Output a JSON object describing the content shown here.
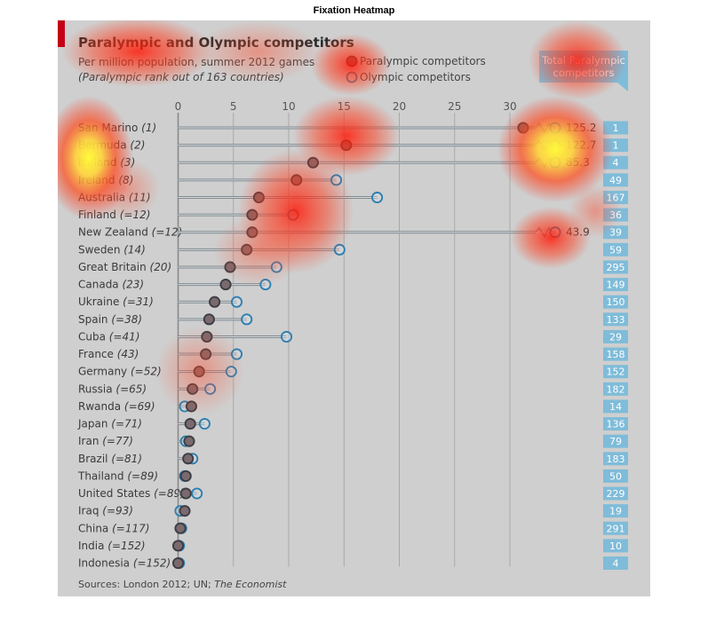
{
  "figure_title": "Fixation Heatmap",
  "chart_data": {
    "type": "scatter",
    "title": "Paralympic and Olympic competitors",
    "subtitle": "Per million population, summer 2012 games",
    "subtitle2": "(Paralympic rank out of 163 countries)",
    "legend": {
      "paralympic": "Paralympic competitors",
      "olympic": "Olympic competitors",
      "placement": "top"
    },
    "total_header": "Total Paralympic competitors",
    "x_ticks": [
      0,
      5,
      10,
      15,
      20,
      25,
      30
    ],
    "xlim": [
      0,
      32
    ],
    "grid": true,
    "source_prefix": "Sources: London 2012; UN; ",
    "source_italic": "The Economist",
    "rows": [
      {
        "country": "San Marino",
        "rank": "(1)",
        "paralympic": 31.2,
        "olympic": 125.2,
        "olympic_label": "125.2",
        "total": "1"
      },
      {
        "country": "Bermuda",
        "rank": "(2)",
        "paralympic": 15.2,
        "olympic": 122.7,
        "olympic_label": "122.7",
        "total": "1"
      },
      {
        "country": "Iceland",
        "rank": "(3)",
        "paralympic": 12.2,
        "olympic": 85.3,
        "olympic_label": "85.3",
        "total": "4"
      },
      {
        "country": "Ireland",
        "rank": "(8)",
        "paralympic": 10.7,
        "olympic": 14.3,
        "olympic_label": "",
        "total": "49"
      },
      {
        "country": "Australia",
        "rank": "(11)",
        "paralympic": 7.3,
        "olympic": 18.0,
        "olympic_label": "",
        "total": "167"
      },
      {
        "country": "Finland",
        "rank": "(=12)",
        "paralympic": 6.7,
        "olympic": 10.4,
        "olympic_label": "",
        "total": "36"
      },
      {
        "country": "New Zealand",
        "rank": "(=12)",
        "paralympic": 6.7,
        "olympic": 43.9,
        "olympic_label": "43.9",
        "total": "39"
      },
      {
        "country": "Sweden",
        "rank": "(14)",
        "paralympic": 6.2,
        "olympic": 14.6,
        "olympic_label": "",
        "total": "59"
      },
      {
        "country": "Great Britain",
        "rank": "(20)",
        "paralympic": 4.7,
        "olympic": 8.9,
        "olympic_label": "",
        "total": "295"
      },
      {
        "country": "Canada",
        "rank": "(23)",
        "paralympic": 4.3,
        "olympic": 7.9,
        "olympic_label": "",
        "total": "149"
      },
      {
        "country": "Ukraine",
        "rank": "(=31)",
        "paralympic": 3.3,
        "olympic": 5.3,
        "olympic_label": "",
        "total": "150"
      },
      {
        "country": "Spain",
        "rank": "(=38)",
        "paralympic": 2.8,
        "olympic": 6.2,
        "olympic_label": "",
        "total": "133"
      },
      {
        "country": "Cuba",
        "rank": "(=41)",
        "paralympic": 2.6,
        "olympic": 9.8,
        "olympic_label": "",
        "total": "29"
      },
      {
        "country": "France",
        "rank": "(43)",
        "paralympic": 2.5,
        "olympic": 5.3,
        "olympic_label": "",
        "total": "158"
      },
      {
        "country": "Germany",
        "rank": "(=52)",
        "paralympic": 1.9,
        "olympic": 4.8,
        "olympic_label": "",
        "total": "152"
      },
      {
        "country": "Russia",
        "rank": "(=65)",
        "paralympic": 1.3,
        "olympic": 2.9,
        "olympic_label": "",
        "total": "182"
      },
      {
        "country": "Rwanda",
        "rank": "(=69)",
        "paralympic": 1.2,
        "olympic": 0.6,
        "olympic_label": "",
        "total": "14"
      },
      {
        "country": "Japan",
        "rank": "(=71)",
        "paralympic": 1.1,
        "olympic": 2.4,
        "olympic_label": "",
        "total": "136"
      },
      {
        "country": "Iran",
        "rank": "(=77)",
        "paralympic": 1.0,
        "olympic": 0.7,
        "olympic_label": "",
        "total": "79"
      },
      {
        "country": "Brazil",
        "rank": "(=81)",
        "paralympic": 0.9,
        "olympic": 1.3,
        "olympic_label": "",
        "total": "183"
      },
      {
        "country": "Thailand",
        "rank": "(=89)",
        "paralympic": 0.7,
        "olympic": 0.6,
        "olympic_label": "",
        "total": "50"
      },
      {
        "country": "United States",
        "rank": "(=89)",
        "paralympic": 0.7,
        "olympic": 1.7,
        "olympic_label": "",
        "total": "229"
      },
      {
        "country": "Iraq",
        "rank": "(=93)",
        "paralympic": 0.6,
        "olympic": 0.2,
        "olympic_label": "",
        "total": "19"
      },
      {
        "country": "China",
        "rank": "(=117)",
        "paralympic": 0.2,
        "olympic": 0.3,
        "olympic_label": "",
        "total": "291"
      },
      {
        "country": "India",
        "rank": "(=152)",
        "paralympic": 0.0,
        "olympic": 0.1,
        "olympic_label": "",
        "total": "10"
      },
      {
        "country": "Indonesia",
        "rank": "(=152)",
        "paralympic": 0.0,
        "olympic": 0.1,
        "olympic_label": "",
        "total": "4"
      }
    ]
  },
  "colors": {
    "paralympic_fill": "#7a6a6e",
    "paralympic_stroke": "#3d3d44",
    "olympic_stroke": "#2f7fb0",
    "red_tag": "#c20016",
    "total_box": "#7fbcd9",
    "background": "#cfcfcf",
    "heat_red": "#ff2a1a",
    "heat_yellow": "#fffb3a"
  }
}
